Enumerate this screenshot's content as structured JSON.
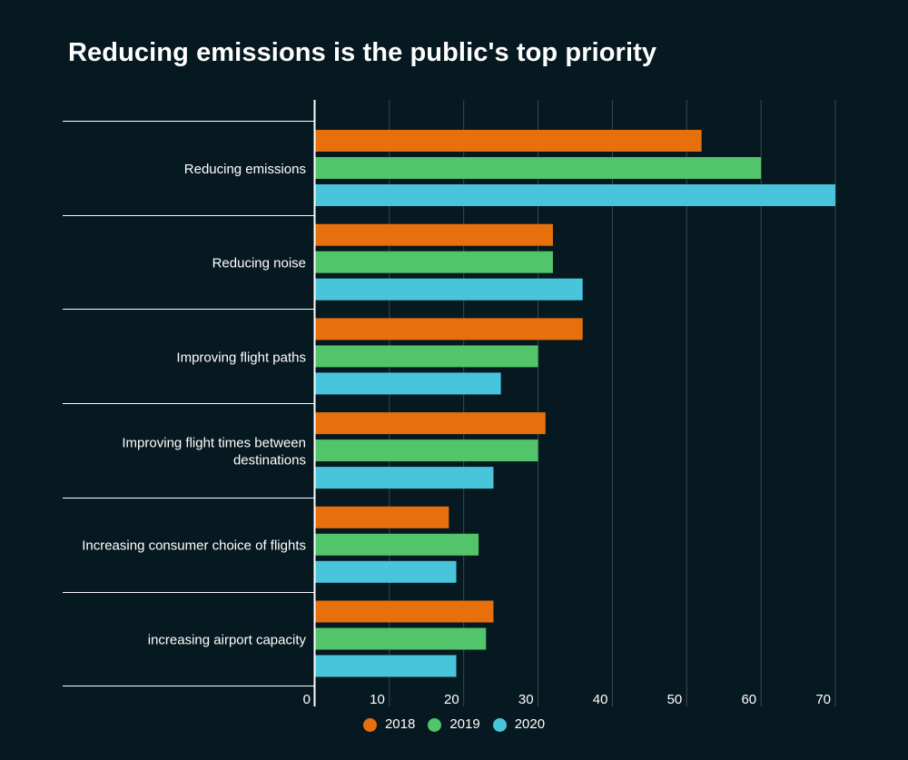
{
  "chart_data": {
    "type": "bar",
    "orientation": "horizontal",
    "title": "Reducing emissions is the public's top priority",
    "categories": [
      "Reducing emissions",
      "Reducing noise",
      "Improving flight paths",
      "Improving flight times between destinations",
      "Increasing consumer choice of flights",
      "increasing airport capacity"
    ],
    "category_lines": [
      [
        "Reducing emissions"
      ],
      [
        "Reducing noise"
      ],
      [
        "Improving flight paths"
      ],
      [
        "Improving flight times between",
        "destinations"
      ],
      [
        "Increasing consumer choice of flights"
      ],
      [
        "increasing airport capacity"
      ]
    ],
    "series": [
      {
        "name": "2018",
        "color": "#e8700c",
        "values": [
          52,
          32,
          36,
          31,
          18,
          24
        ]
      },
      {
        "name": "2019",
        "color": "#52c46a",
        "values": [
          60,
          32,
          30,
          30,
          22,
          23
        ]
      },
      {
        "name": "2020",
        "color": "#48c5da",
        "values": [
          70,
          36,
          25,
          24,
          19,
          19
        ]
      }
    ],
    "xlim": [
      0,
      70
    ],
    "xticks": [
      0,
      10,
      20,
      30,
      40,
      50,
      60,
      70
    ],
    "grid": true,
    "legend_position": "bottom"
  }
}
